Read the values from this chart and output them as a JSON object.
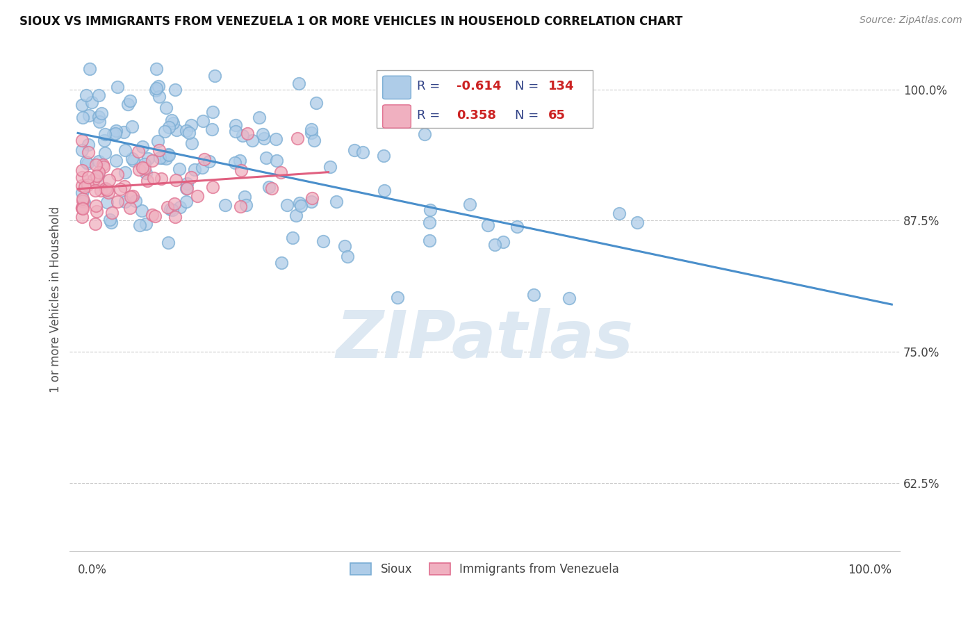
{
  "title": "SIOUX VS IMMIGRANTS FROM VENEZUELA 1 OR MORE VEHICLES IN HOUSEHOLD CORRELATION CHART",
  "source": "Source: ZipAtlas.com",
  "ylabel": "1 or more Vehicles in Household",
  "yticks": [
    "62.5%",
    "75.0%",
    "87.5%",
    "100.0%"
  ],
  "ytick_vals": [
    0.625,
    0.75,
    0.875,
    1.0
  ],
  "R_sioux": -0.614,
  "N_sioux": 134,
  "R_venezuela": 0.358,
  "N_venezuela": 65,
  "color_sioux": "#aecce8",
  "color_venezuela": "#f0b0c0",
  "color_sioux_edge": "#7aadd4",
  "color_venezuela_edge": "#e07090",
  "color_sioux_line": "#4a8fcb",
  "color_venezuela_line": "#e06080",
  "background_color": "#ffffff",
  "watermark": "ZIPatlas",
  "sioux_seed": 7,
  "venezuela_seed": 13,
  "xlim": [
    0.0,
    1.0
  ],
  "ylim": [
    0.56,
    1.04
  ]
}
